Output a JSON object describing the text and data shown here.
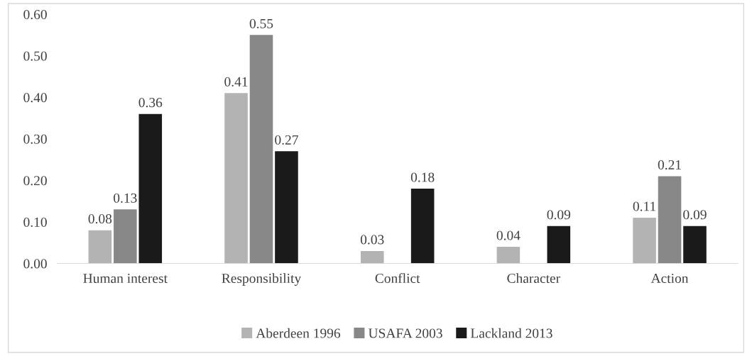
{
  "chart_data": {
    "type": "bar",
    "categories": [
      "Human interest",
      "Responsibility",
      "Conflict",
      "Character",
      "Action"
    ],
    "series": [
      {
        "name": "Aberdeen 1996",
        "color": "#b3b3b3",
        "values": [
          0.08,
          0.41,
          0.03,
          0.04,
          0.11
        ]
      },
      {
        "name": "USAFA 2003",
        "color": "#878787",
        "values": [
          0.13,
          0.55,
          null,
          null,
          0.21
        ]
      },
      {
        "name": "Lackland 2013",
        "color": "#1a1a1a",
        "values": [
          0.36,
          0.27,
          0.18,
          0.09,
          0.09
        ]
      }
    ],
    "ylim": [
      0,
      0.6
    ],
    "yticks": [
      {
        "value": 0,
        "label": "0.00"
      },
      {
        "value": 0.1,
        "label": "0.10"
      },
      {
        "value": 0.2,
        "label": "0.20"
      },
      {
        "value": 0.3,
        "label": "0.30"
      },
      {
        "value": 0.4,
        "label": "0.40"
      },
      {
        "value": 0.5,
        "label": "0.50"
      },
      {
        "value": 0.6,
        "label": "0.60"
      }
    ],
    "data_labels": true,
    "grid": false,
    "legend": "bottom"
  }
}
